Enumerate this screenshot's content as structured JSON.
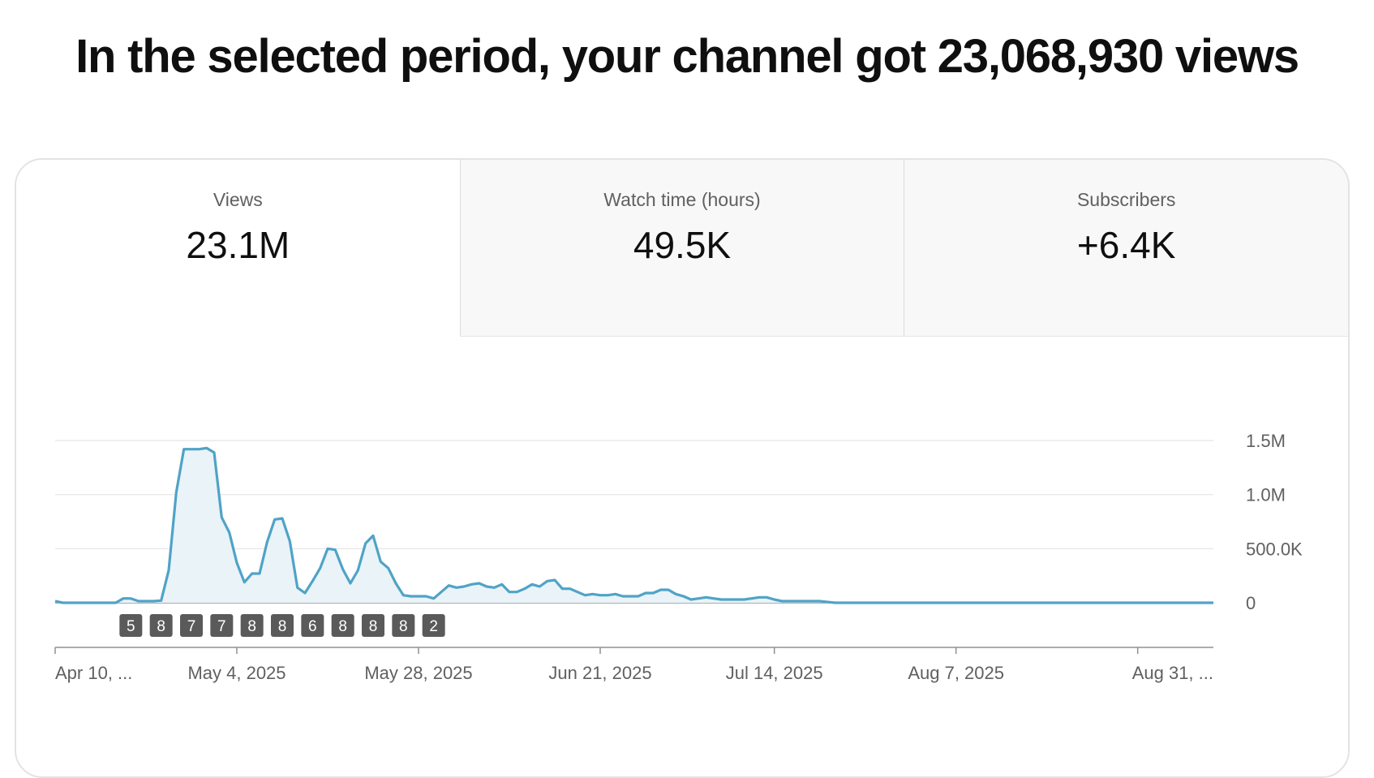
{
  "headline": "In the selected period, your channel got 23,068,930 views",
  "tabs": [
    {
      "label": "Views",
      "value": "23.1M",
      "selected": true
    },
    {
      "label": "Watch time (hours)",
      "value": "49.5K",
      "selected": false
    },
    {
      "label": "Subscribers",
      "value": "+6.4K",
      "selected": false
    }
  ],
  "colors": {
    "line": "#4fa3c7",
    "fill": "#eaf3f8",
    "grid": "#e5e5e5",
    "axis": "#606060",
    "badge": "#5a5a5a"
  },
  "chart_data": {
    "type": "area",
    "x_range": [
      "2025-04-10",
      "2025-09-10"
    ],
    "ylim": [
      0,
      1500000
    ],
    "y_ticks": [
      {
        "value": 0,
        "label": "0"
      },
      {
        "value": 500000,
        "label": "500.0K"
      },
      {
        "value": 1000000,
        "label": "1.0M"
      },
      {
        "value": 1500000,
        "label": "1.5M"
      }
    ],
    "x_ticks": [
      {
        "date": "2025-04-10",
        "label": "Apr 10, ..."
      },
      {
        "date": "2025-05-04",
        "label": "May 4, 2025"
      },
      {
        "date": "2025-05-28",
        "label": "May 28, 2025"
      },
      {
        "date": "2025-06-21",
        "label": "Jun 21, 2025"
      },
      {
        "date": "2025-07-14",
        "label": "Jul 14, 2025"
      },
      {
        "date": "2025-08-07",
        "label": "Aug 7, 2025"
      },
      {
        "date": "2025-08-31",
        "label": "Aug 31, ..."
      }
    ],
    "series": [
      {
        "x": [
          "2025-04-10",
          "2025-04-11",
          "2025-04-12",
          "2025-04-13",
          "2025-04-14",
          "2025-04-15",
          "2025-04-16",
          "2025-04-17",
          "2025-04-18",
          "2025-04-19",
          "2025-04-20",
          "2025-04-21",
          "2025-04-22",
          "2025-04-23",
          "2025-04-24",
          "2025-04-25",
          "2025-04-26",
          "2025-04-27",
          "2025-04-28",
          "2025-04-29",
          "2025-04-30",
          "2025-05-01",
          "2025-05-02",
          "2025-05-03",
          "2025-05-04",
          "2025-05-05",
          "2025-05-06",
          "2025-05-07",
          "2025-05-08",
          "2025-05-09",
          "2025-05-10",
          "2025-05-11",
          "2025-05-12",
          "2025-05-13",
          "2025-05-14",
          "2025-05-15",
          "2025-05-16",
          "2025-05-17",
          "2025-05-18",
          "2025-05-19",
          "2025-05-20",
          "2025-05-21",
          "2025-05-22",
          "2025-05-23",
          "2025-05-24",
          "2025-05-25",
          "2025-05-26",
          "2025-05-27",
          "2025-05-28",
          "2025-05-29",
          "2025-05-30",
          "2025-05-31",
          "2025-06-01",
          "2025-06-02",
          "2025-06-03",
          "2025-06-04",
          "2025-06-05",
          "2025-06-06",
          "2025-06-07",
          "2025-06-08",
          "2025-06-09",
          "2025-06-10",
          "2025-06-11",
          "2025-06-12",
          "2025-06-13",
          "2025-06-14",
          "2025-06-15",
          "2025-06-16",
          "2025-06-17",
          "2025-06-18",
          "2025-06-19",
          "2025-06-20",
          "2025-06-21",
          "2025-06-22",
          "2025-06-23",
          "2025-06-24",
          "2025-06-25",
          "2025-06-26",
          "2025-06-27",
          "2025-06-28",
          "2025-06-29",
          "2025-06-30",
          "2025-07-01",
          "2025-07-02",
          "2025-07-03",
          "2025-07-04",
          "2025-07-05",
          "2025-07-06",
          "2025-07-07",
          "2025-07-08",
          "2025-07-09",
          "2025-07-10",
          "2025-07-11",
          "2025-07-12",
          "2025-07-13",
          "2025-07-14",
          "2025-07-15",
          "2025-07-16",
          "2025-07-17",
          "2025-07-18",
          "2025-07-19",
          "2025-07-20",
          "2025-07-22",
          "2025-09-10"
        ],
        "values": [
          15000,
          0,
          0,
          0,
          0,
          0,
          0,
          0,
          0,
          40000,
          40000,
          15000,
          15000,
          15000,
          20000,
          300000,
          1020000,
          1420000,
          1420000,
          1420000,
          1430000,
          1390000,
          790000,
          650000,
          370000,
          190000,
          270000,
          270000,
          560000,
          770000,
          780000,
          570000,
          140000,
          90000,
          200000,
          320000,
          500000,
          490000,
          310000,
          180000,
          300000,
          550000,
          620000,
          380000,
          320000,
          180000,
          70000,
          60000,
          60000,
          60000,
          40000,
          100000,
          160000,
          140000,
          150000,
          170000,
          180000,
          150000,
          140000,
          170000,
          100000,
          100000,
          130000,
          170000,
          150000,
          200000,
          210000,
          130000,
          130000,
          100000,
          70000,
          80000,
          70000,
          70000,
          80000,
          60000,
          60000,
          60000,
          90000,
          90000,
          120000,
          120000,
          80000,
          60000,
          30000,
          40000,
          50000,
          40000,
          30000,
          30000,
          30000,
          30000,
          40000,
          50000,
          50000,
          30000,
          15000,
          15000,
          15000,
          15000,
          15000,
          15000,
          0,
          0
        ]
      }
    ],
    "annotations": [
      {
        "date": "2025-04-20",
        "label": "5"
      },
      {
        "date": "2025-04-24",
        "label": "8"
      },
      {
        "date": "2025-04-28",
        "label": "7"
      },
      {
        "date": "2025-05-02",
        "label": "7"
      },
      {
        "date": "2025-05-06",
        "label": "8"
      },
      {
        "date": "2025-05-10",
        "label": "8"
      },
      {
        "date": "2025-05-14",
        "label": "6"
      },
      {
        "date": "2025-05-18",
        "label": "8"
      },
      {
        "date": "2025-05-22",
        "label": "8"
      },
      {
        "date": "2025-05-26",
        "label": "8"
      },
      {
        "date": "2025-05-30",
        "label": "2"
      }
    ]
  }
}
